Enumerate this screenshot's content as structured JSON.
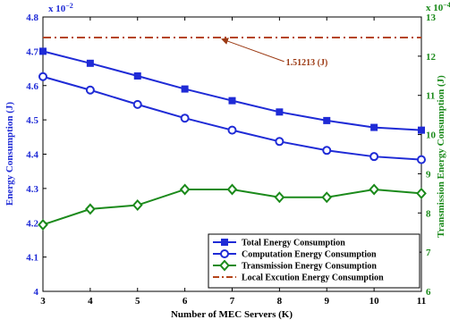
{
  "chart_data": {
    "type": "line",
    "xlabel": "Number of MEC Servers (K)",
    "ylabel": "Energy Consumption (J)",
    "y2label": "Transmission Energy Consumption (J)",
    "x": [
      3,
      4,
      5,
      6,
      7,
      8,
      9,
      10,
      11
    ],
    "xlim": [
      3,
      11
    ],
    "ylim": [
      4,
      4.8
    ],
    "y2lim": [
      6,
      13
    ],
    "left_exponent_base": "x 10",
    "left_exponent_power": "−2",
    "right_exponent_base": "x 10",
    "right_exponent_power": "−4",
    "left_ticks": [
      "4",
      "4.1",
      "4.2",
      "4.3",
      "4.4",
      "4.5",
      "4.6",
      "4.7",
      "4.8"
    ],
    "right_ticks": [
      "6",
      "7",
      "8",
      "9",
      "10",
      "11",
      "12",
      "13"
    ],
    "x_ticks": [
      "3",
      "4",
      "5",
      "6",
      "7",
      "8",
      "9",
      "10",
      "11"
    ],
    "series": [
      {
        "name": "Total Energy Consumption",
        "axis": "left",
        "color": "#1f2bd6",
        "marker": "square",
        "values": [
          4.7,
          4.665,
          4.628,
          4.59,
          4.556,
          4.523,
          4.498,
          4.478,
          4.47
        ]
      },
      {
        "name": "Computation Energy Consumption",
        "axis": "left",
        "color": "#1f2bd6",
        "marker": "circle",
        "values": [
          4.626,
          4.587,
          4.545,
          4.505,
          4.47,
          4.437,
          4.411,
          4.393,
          4.384
        ]
      },
      {
        "name": "Transmission Energy Consumption",
        "axis": "right",
        "color": "#1b8a1b",
        "marker": "diamond",
        "values": [
          7.7,
          8.1,
          8.2,
          8.6,
          8.6,
          8.4,
          8.4,
          8.6,
          8.5
        ]
      },
      {
        "name": "Local Excution Energy Consumption",
        "axis": "left",
        "color": "#b5451b",
        "marker": "none",
        "dash": "dashdot",
        "values": [
          4.74,
          4.74,
          4.74,
          4.74,
          4.74,
          4.74,
          4.74,
          4.74,
          4.74
        ]
      }
    ],
    "annotation": {
      "text": "1.51213 (J)",
      "color": "#9c3a14",
      "x_from": 8.1,
      "y_from": 4.67,
      "x_to": 6.8,
      "y_to": 4.74
    },
    "legend_position": "bottom-right",
    "grid": false
  }
}
